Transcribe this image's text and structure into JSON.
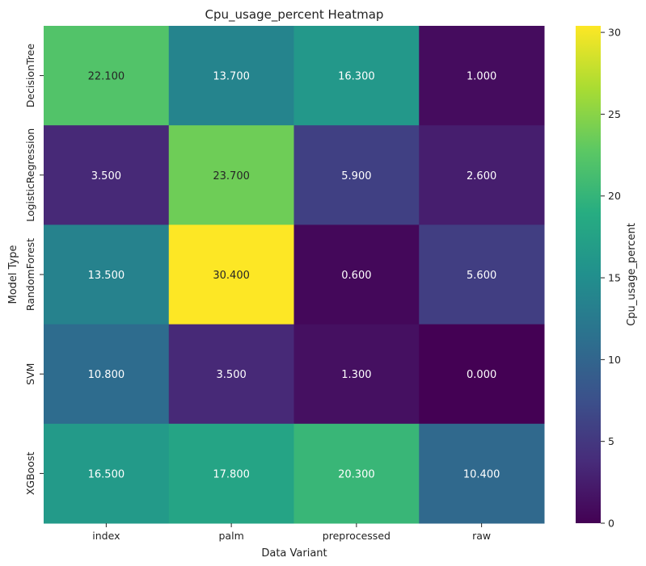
{
  "chart_data": {
    "type": "heatmap",
    "title": "Cpu_usage_percent Heatmap",
    "xlabel": "Data Variant",
    "ylabel": "Model Type",
    "x_categories": [
      "index",
      "palm",
      "preprocessed",
      "raw"
    ],
    "y_categories": [
      "DecisionTree",
      "LogisticRegression",
      "RandomForest",
      "SVM",
      "XGBoost"
    ],
    "values": [
      [
        22.1,
        13.7,
        16.3,
        1.0
      ],
      [
        3.5,
        23.7,
        5.9,
        2.6
      ],
      [
        13.5,
        30.4,
        0.6,
        5.6
      ],
      [
        10.8,
        3.5,
        1.3,
        0.0
      ],
      [
        16.5,
        17.8,
        20.3,
        10.4
      ]
    ],
    "value_labels": [
      [
        "22.100",
        "13.700",
        "16.300",
        "1.000"
      ],
      [
        "3.500",
        "23.700",
        "5.900",
        "2.600"
      ],
      [
        "13.500",
        "30.400",
        "0.600",
        "5.600"
      ],
      [
        "10.800",
        "3.500",
        "1.300",
        "0.000"
      ],
      [
        "16.500",
        "17.800",
        "20.300",
        "10.400"
      ]
    ],
    "colormap": "viridis",
    "vmin": 0.0,
    "vmax": 30.4,
    "colorbar": {
      "label": "Cpu_usage_percent",
      "ticks": [
        0,
        5,
        10,
        15,
        20,
        25,
        30
      ],
      "tick_labels": [
        "0",
        "5",
        "10",
        "15",
        "20",
        "25",
        "30"
      ]
    }
  }
}
